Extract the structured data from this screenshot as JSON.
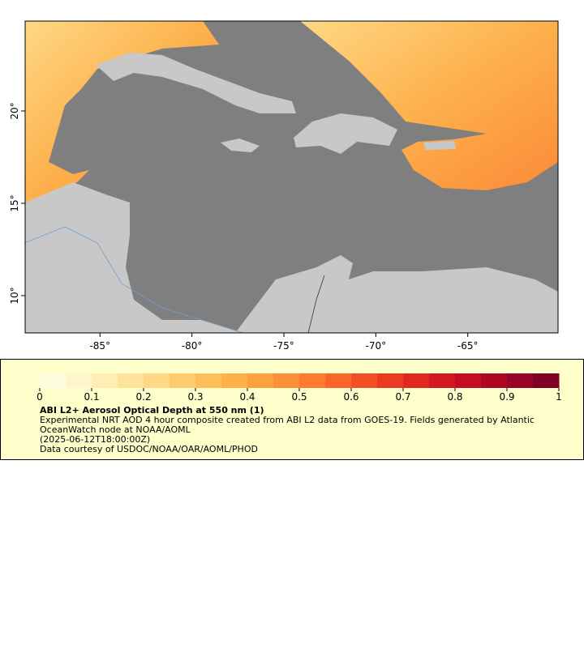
{
  "chart_data": {
    "type": "map",
    "xlim": [
      -89.07,
      -60.09
    ],
    "ylim": [
      7.98,
      24.87
    ],
    "xticks": [
      {
        "value": -85,
        "label": "-85°"
      },
      {
        "value": -80,
        "label": "-80°"
      },
      {
        "value": -75,
        "label": "-75°"
      },
      {
        "value": -70,
        "label": "-70°"
      },
      {
        "value": -65,
        "label": "-65°"
      }
    ],
    "yticks": [
      {
        "value": 10,
        "label": "10°"
      },
      {
        "value": 15,
        "label": "15°"
      },
      {
        "value": 20,
        "label": "20°"
      }
    ],
    "colorbar": {
      "lim": [
        0,
        1
      ],
      "ticks": [
        0,
        0.1,
        0.2,
        0.3,
        0.4,
        0.5,
        0.6,
        0.7,
        0.8,
        0.9,
        1
      ],
      "colors": [
        "#fffde0",
        "#fff5cc",
        "#ffedb3",
        "#ffe39a",
        "#fed884",
        "#fecc6e",
        "#febf5a",
        "#feb04b",
        "#fda040",
        "#fd8f38",
        "#fc7b30",
        "#fa6529",
        "#f34f24",
        "#ea3a21",
        "#df281f",
        "#d2191f",
        "#c20d22",
        "#b00626",
        "#980226",
        "#800026"
      ]
    },
    "title": "ABI L2+ Aerosol Optical Depth at 550 nm (1)",
    "description": "Experimental NRT AOD 4 hour composite created from ABI L2 data from GOES-19. Fields generated by Atlantic OceanWatch node at NOAA/AOML",
    "time": "(2025-06-12T18:00:00Z)",
    "credit": "Data courtesy of USDOC/NOAA/OAR/AOML/PHOD"
  }
}
